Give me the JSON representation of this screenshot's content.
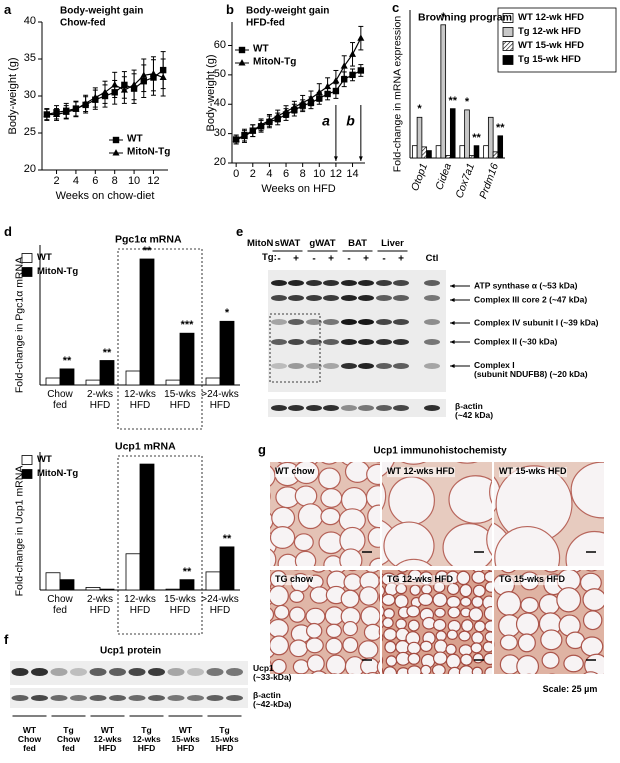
{
  "chart_data": [
    {
      "type": "line",
      "panel": "a",
      "title": "Body-weight gain",
      "subtitle": "Chow-fed",
      "x_label": "Weeks on chow-diet",
      "y_label": "Body-weight (g)",
      "x": [
        1,
        2,
        3,
        4,
        5,
        6,
        7,
        8,
        9,
        10,
        11,
        12,
        13
      ],
      "xlim": [
        0.5,
        13.5
      ],
      "xticks": [
        2,
        4,
        6,
        8,
        10,
        12
      ],
      "ylim": [
        20,
        40
      ],
      "yticks": [
        20,
        25,
        30,
        35,
        40
      ],
      "legend": "lower right",
      "series": [
        {
          "name": "WT",
          "marker": "square",
          "color": "#000000",
          "values": [
            27.5,
            27.8,
            28,
            28.3,
            28.8,
            29.5,
            30,
            30.5,
            31.5,
            31,
            32,
            32.5,
            33.5
          ],
          "errors": [
            0.8,
            0.9,
            1,
            1,
            1.1,
            1.3,
            1.5,
            1.6,
            1.8,
            2,
            2.2,
            2.4,
            2.5
          ]
        },
        {
          "name": "MitoN-Tg",
          "marker": "triangle",
          "color": "#000000",
          "values": [
            27.5,
            27.5,
            27.8,
            28.2,
            29,
            29.8,
            30.5,
            31.5,
            30.8,
            31.5,
            32.8,
            33,
            32.5
          ],
          "errors": [
            0.7,
            0.8,
            0.9,
            1,
            1.1,
            1.3,
            1.5,
            1.7,
            1.8,
            2,
            2.2,
            2.3,
            2.5
          ]
        }
      ]
    },
    {
      "type": "line",
      "panel": "b",
      "title": "Body-weight gain",
      "subtitle": "HFD-fed",
      "x_label": "Weeks on HFD",
      "y_label": "Body-weight (g)",
      "x": [
        0,
        1,
        2,
        3,
        4,
        5,
        6,
        7,
        8,
        9,
        10,
        11,
        12,
        13,
        14,
        15
      ],
      "xlim": [
        -0.5,
        15.5
      ],
      "xticks": [
        0,
        2,
        4,
        6,
        8,
        10,
        12,
        14
      ],
      "ylim": [
        20,
        68
      ],
      "yticks": [
        20,
        30,
        40,
        50,
        60
      ],
      "legend": "upper left",
      "annotations": [
        {
          "text": "a",
          "x": 12
        },
        {
          "text": "b",
          "x": 15
        }
      ],
      "series": [
        {
          "name": "WT",
          "marker": "square",
          "color": "#000000",
          "values": [
            28,
            29.5,
            31,
            32.5,
            34,
            35,
            36.5,
            38,
            39.5,
            40.5,
            42,
            43.5,
            44.5,
            48.5,
            50,
            51.5
          ],
          "errors": [
            1.5,
            2,
            2,
            2,
            2,
            2,
            2,
            2,
            2,
            2,
            2,
            2,
            2.5,
            2.5,
            2,
            2
          ]
        },
        {
          "name": "MitoN-Tg",
          "marker": "triangle",
          "color": "#000000",
          "values": [
            28,
            29,
            31,
            33,
            34.5,
            36,
            37.5,
            39,
            40.5,
            42,
            44,
            46,
            48,
            53,
            57,
            62.5
          ],
          "errors": [
            1.5,
            2,
            2,
            2,
            2,
            2,
            2,
            2,
            2.5,
            2.5,
            3,
            3,
            3.5,
            3.5,
            4,
            4
          ]
        }
      ]
    },
    {
      "type": "bar",
      "panel": "c",
      "title": "Browning program",
      "y_label": "Fold-change in mRNA expression",
      "categories": [
        "Otop1",
        "Cidea",
        "Cox7a1",
        "Prdm16"
      ],
      "ylim": [
        0,
        12
      ],
      "legend": "upper right",
      "series": [
        {
          "name": "WT 12-wk HFD",
          "color": "#ffffff",
          "values": [
            1,
            1,
            1,
            1
          ]
        },
        {
          "name": "Tg 12-wk HFD",
          "color": "#c8c8c8",
          "values": [
            3.3,
            10.8,
            3.9,
            3.3
          ],
          "stars": [
            "*",
            "*",
            "*",
            null
          ]
        },
        {
          "name": "WT 15-wk HFD",
          "color": "#ffffff",
          "pattern": "hatch",
          "values": [
            0.9,
            0.2,
            0.2,
            0.5
          ]
        },
        {
          "name": "Tg 15-wk HFD",
          "color": "#000000",
          "values": [
            0.6,
            4,
            1,
            1.8
          ],
          "stars": [
            null,
            "**",
            "**",
            "**"
          ]
        }
      ]
    },
    {
      "type": "bar",
      "panel": "d",
      "title": "Pgc1α mRNA",
      "y_label": "Fold-change in Pgc1α mRNA",
      "categories": [
        "Chow\nfed",
        "2-wks\nHFD",
        "12-wks\nHFD",
        "15-wks\nHFD",
        ">24-wks\nHFD"
      ],
      "ylim": [
        0,
        20
      ],
      "legend": "upper left",
      "series": [
        {
          "name": "WT",
          "color": "#ffffff",
          "values": [
            1,
            0.7,
            2,
            0.7,
            1
          ]
        },
        {
          "name": "MitoN-Tg",
          "color": "#000000",
          "values": [
            2.3,
            3.5,
            18,
            7.4,
            9.1
          ],
          "stars": [
            "**",
            "**",
            "**",
            "***",
            "*"
          ]
        }
      ]
    },
    {
      "type": "bar",
      "title": "Ucp1 mRNA",
      "y_label": "Fold-change in Ucp1 mRNA",
      "categories": [
        "Chow\nfed",
        "2-wks\nHFD",
        "12-wks\nHFD",
        "15-wks\nHFD",
        ">24-wks\nHFD"
      ],
      "ylim": [
        0,
        8
      ],
      "legend": "upper left",
      "series": [
        {
          "name": "WT",
          "color": "#ffffff",
          "values": [
            1,
            0.15,
            2.1,
            0.05,
            1.05
          ]
        },
        {
          "name": "MitoN-Tg",
          "color": "#000000",
          "values": [
            0.6,
            0.05,
            7.3,
            0.6,
            2.5
          ],
          "stars": [
            null,
            null,
            null,
            "**",
            "**"
          ]
        }
      ]
    }
  ],
  "blot_e": {
    "panel": "e",
    "row_label": [
      "MitoN",
      "Tg:"
    ],
    "tissues": [
      "sWAT",
      "gWAT",
      "BAT",
      "Liver"
    ],
    "lanes": [
      "-",
      "+",
      "-",
      "+",
      "-",
      "+",
      "-",
      "+"
    ],
    "control": "Ctl",
    "bands": [
      "ATP synthase α (~53 kDa)",
      "Complex III core 2 (~47 kDa)",
      "Complex IV subunit I (~39 kDa)",
      "Complex II (~30 kDa)",
      "Complex I\n(subunit NDUFB8) (~20 kDa)"
    ],
    "loading": "β-actin\n(~42 kDa)"
  },
  "blot_f": {
    "panel": "f",
    "title": "Ucp1 protein",
    "bands": [
      "Ucp1\n(~33-kDa)",
      "β-actin\n(~42-kDa)"
    ],
    "lanes": [
      "WT\nChow\nfed",
      "Tg\nChow\nfed",
      "WT\n12-wks\nHFD",
      "Tg\n12-wks\nHFD",
      "WT\n15-wks\nHFD",
      "Tg\n15-wks\nHFD"
    ]
  },
  "histology_g": {
    "panel": "g",
    "title": "Ucp1 immunohistochemisty",
    "tiles": [
      "WT chow",
      "WT 12-wks HFD",
      "WT 15-wks HFD",
      "TG chow",
      "TG 12-wks HFD",
      "TG 15-wks HFD"
    ],
    "scale": "Scale: 25 µm"
  }
}
